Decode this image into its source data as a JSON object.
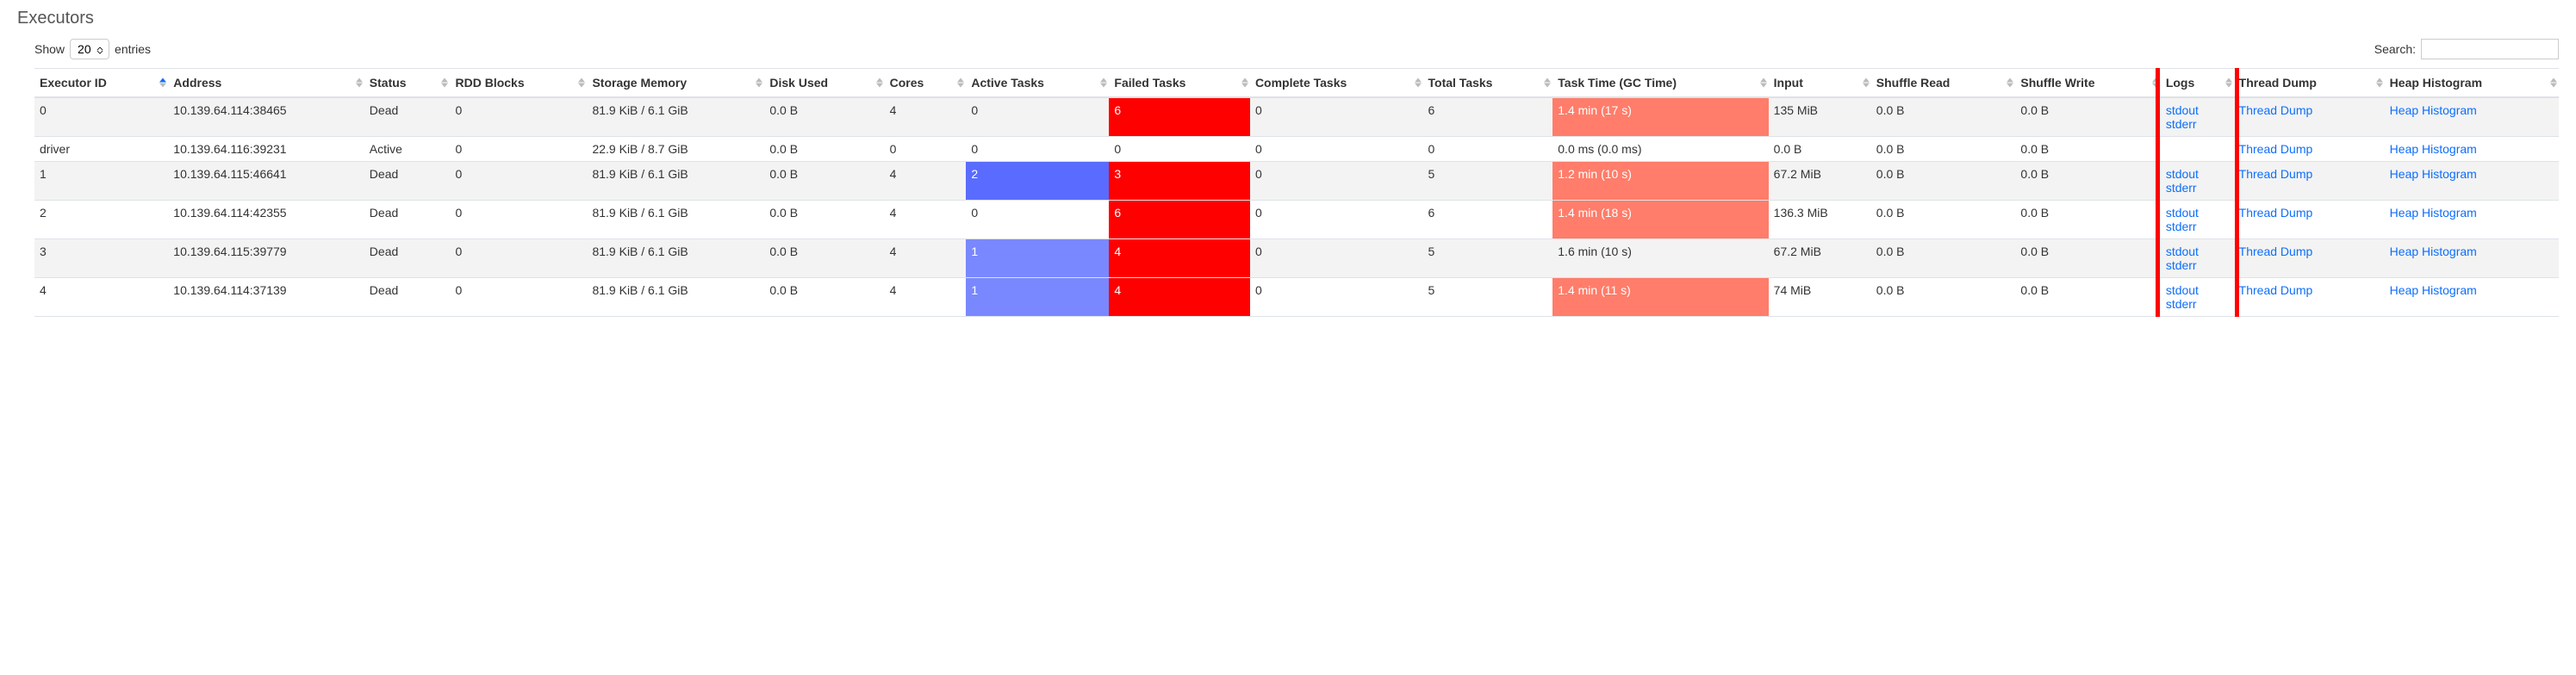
{
  "title": "Executors",
  "controls": {
    "show_label_pre": "Show",
    "show_label_post": "entries",
    "show_value": "20",
    "search_label": "Search:",
    "search_value": ""
  },
  "colors": {
    "failed_bg": "#ff0000",
    "active_bg": "#5a6cff",
    "active_bg_light": "#7a88ff",
    "gc_warn_bg": "#ff7d6a",
    "link": "#0d6efd",
    "sorted_asc": "#0d6efd"
  },
  "columns": [
    {
      "key": "executor_id",
      "label": "Executor ID"
    },
    {
      "key": "address",
      "label": "Address"
    },
    {
      "key": "status",
      "label": "Status"
    },
    {
      "key": "rdd_blocks",
      "label": "RDD Blocks"
    },
    {
      "key": "storage_memory",
      "label": "Storage Memory"
    },
    {
      "key": "disk_used",
      "label": "Disk Used"
    },
    {
      "key": "cores",
      "label": "Cores"
    },
    {
      "key": "active_tasks",
      "label": "Active Tasks"
    },
    {
      "key": "failed_tasks",
      "label": "Failed Tasks"
    },
    {
      "key": "complete_tasks",
      "label": "Complete Tasks"
    },
    {
      "key": "total_tasks",
      "label": "Total Tasks"
    },
    {
      "key": "task_time",
      "label": "Task Time (GC Time)"
    },
    {
      "key": "input",
      "label": "Input"
    },
    {
      "key": "shuffle_read",
      "label": "Shuffle Read"
    },
    {
      "key": "shuffle_write",
      "label": "Shuffle Write"
    },
    {
      "key": "logs",
      "label": "Logs"
    },
    {
      "key": "thread_dump",
      "label": "Thread Dump"
    },
    {
      "key": "heap_histogram",
      "label": "Heap Histogram"
    }
  ],
  "sorted_column": "executor_id",
  "sort_dir": "asc",
  "log_labels": {
    "stdout": "stdout",
    "stderr": "stderr"
  },
  "thread_dump_label": "Thread Dump",
  "heap_histogram_label": "Heap Histogram",
  "rows": [
    {
      "executor_id": "0",
      "address": "10.139.64.114:38465",
      "status": "Dead",
      "rdd_blocks": "0",
      "storage_memory": "81.9 KiB / 6.1 GiB",
      "disk_used": "0.0 B",
      "cores": "4",
      "active_tasks": {
        "text": "0",
        "bg": null
      },
      "failed_tasks": {
        "text": "6",
        "bg": "#ff0000"
      },
      "complete_tasks": "0",
      "total_tasks": "6",
      "task_time": {
        "text": "1.4 min (17 s)",
        "bg": "#ff7d6a"
      },
      "input": "135 MiB",
      "shuffle_read": "0.0 B",
      "shuffle_write": "0.0 B",
      "logs": true
    },
    {
      "executor_id": "driver",
      "address": "10.139.64.116:39231",
      "status": "Active",
      "rdd_blocks": "0",
      "storage_memory": "22.9 KiB / 8.7 GiB",
      "disk_used": "0.0 B",
      "cores": "0",
      "active_tasks": {
        "text": "0",
        "bg": null
      },
      "failed_tasks": {
        "text": "0",
        "bg": null
      },
      "complete_tasks": "0",
      "total_tasks": "0",
      "task_time": {
        "text": "0.0 ms (0.0 ms)",
        "bg": null
      },
      "input": "0.0 B",
      "shuffle_read": "0.0 B",
      "shuffle_write": "0.0 B",
      "logs": false
    },
    {
      "executor_id": "1",
      "address": "10.139.64.115:46641",
      "status": "Dead",
      "rdd_blocks": "0",
      "storage_memory": "81.9 KiB / 6.1 GiB",
      "disk_used": "0.0 B",
      "cores": "4",
      "active_tasks": {
        "text": "2",
        "bg": "#5a6cff"
      },
      "failed_tasks": {
        "text": "3",
        "bg": "#ff0000"
      },
      "complete_tasks": "0",
      "total_tasks": "5",
      "task_time": {
        "text": "1.2 min (10 s)",
        "bg": "#ff7d6a"
      },
      "input": "67.2 MiB",
      "shuffle_read": "0.0 B",
      "shuffle_write": "0.0 B",
      "logs": true
    },
    {
      "executor_id": "2",
      "address": "10.139.64.114:42355",
      "status": "Dead",
      "rdd_blocks": "0",
      "storage_memory": "81.9 KiB / 6.1 GiB",
      "disk_used": "0.0 B",
      "cores": "4",
      "active_tasks": {
        "text": "0",
        "bg": null
      },
      "failed_tasks": {
        "text": "6",
        "bg": "#ff0000"
      },
      "complete_tasks": "0",
      "total_tasks": "6",
      "task_time": {
        "text": "1.4 min (18 s)",
        "bg": "#ff7d6a"
      },
      "input": "136.3 MiB",
      "shuffle_read": "0.0 B",
      "shuffle_write": "0.0 B",
      "logs": true
    },
    {
      "executor_id": "3",
      "address": "10.139.64.115:39779",
      "status": "Dead",
      "rdd_blocks": "0",
      "storage_memory": "81.9 KiB / 6.1 GiB",
      "disk_used": "0.0 B",
      "cores": "4",
      "active_tasks": {
        "text": "1",
        "bg": "#7a88ff"
      },
      "failed_tasks": {
        "text": "4",
        "bg": "#ff0000"
      },
      "complete_tasks": "0",
      "total_tasks": "5",
      "task_time": {
        "text": "1.6 min (10 s)",
        "bg": null
      },
      "input": "67.2 MiB",
      "shuffle_read": "0.0 B",
      "shuffle_write": "0.0 B",
      "logs": true
    },
    {
      "executor_id": "4",
      "address": "10.139.64.114:37139",
      "status": "Dead",
      "rdd_blocks": "0",
      "storage_memory": "81.9 KiB / 6.1 GiB",
      "disk_used": "0.0 B",
      "cores": "4",
      "active_tasks": {
        "text": "1",
        "bg": "#7a88ff"
      },
      "failed_tasks": {
        "text": "4",
        "bg": "#ff0000"
      },
      "complete_tasks": "0",
      "total_tasks": "5",
      "task_time": {
        "text": "1.4 min (11 s)",
        "bg": "#ff7d6a"
      },
      "input": "74 MiB",
      "shuffle_read": "0.0 B",
      "shuffle_write": "0.0 B",
      "logs": true
    }
  ]
}
